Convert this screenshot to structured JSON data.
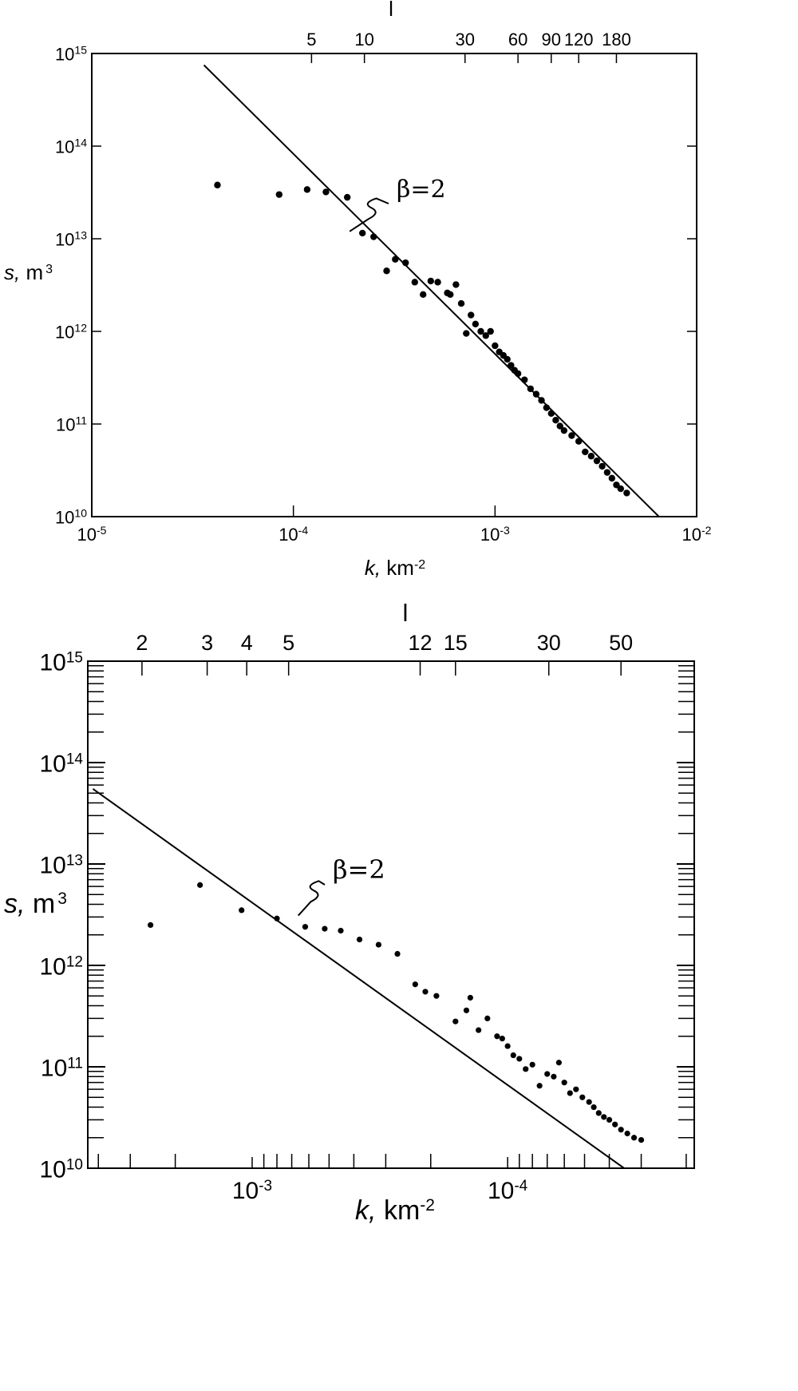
{
  "chart_data": [
    {
      "type": "scatter",
      "title": "",
      "x_scale": "log",
      "y_scale": "log",
      "xlabel": {
        "var": "k,",
        "unit": "km",
        "exp": "-2"
      },
      "ylabel": {
        "var": "s,",
        "unit": "m",
        "exp": "3"
      },
      "top_axis_label": "l",
      "xlim": [
        1e-05,
        0.01
      ],
      "ylim": [
        10000000000,
        1000000000000000
      ],
      "x_tick_labels": [
        {
          "x": 1e-05,
          "exp": "-5"
        },
        {
          "x": 0.0001,
          "exp": "-4"
        },
        {
          "x": 0.001,
          "exp": "-3"
        },
        {
          "x": 0.01,
          "exp": "-2"
        }
      ],
      "y_tick_labels": [
        {
          "y": 10000000000.0,
          "exp": "10"
        },
        {
          "y": 100000000000.0,
          "exp": "11"
        },
        {
          "y": 1000000000000.0,
          "exp": "12"
        },
        {
          "y": 10000000000000.0,
          "exp": "13"
        },
        {
          "y": 100000000000000.0,
          "exp": "14"
        },
        {
          "y": 1000000000000000.0,
          "exp": "15"
        }
      ],
      "top_ticks": [
        {
          "label": "5",
          "k": 0.000123
        },
        {
          "label": "10",
          "k": 0.000225
        },
        {
          "label": "30",
          "k": 0.00071
        },
        {
          "label": "60",
          "k": 0.0013
        },
        {
          "label": "90",
          "k": 0.0019
        },
        {
          "label": "120",
          "k": 0.0026
        },
        {
          "label": "180",
          "k": 0.004
        }
      ],
      "fit_line": {
        "label": "β=2",
        "points": [
          [
            3.6e-05,
            750000000000000.0
          ],
          [
            0.0065,
            10000000000.0
          ]
        ]
      },
      "annotation_at": [
        0.00019,
        12000000000000.0
      ],
      "points": [
        [
          4.2e-05,
          38000000000000.0
        ],
        [
          8.5e-05,
          30000000000000.0
        ],
        [
          0.000117,
          34000000000000.0
        ],
        [
          0.000145,
          32000000000000.0
        ],
        [
          0.000185,
          28000000000000.0
        ],
        [
          0.00022,
          11500000000000.0
        ],
        [
          0.00025,
          10500000000000.0
        ],
        [
          0.00029,
          4500000000000.0
        ],
        [
          0.00032,
          6000000000000.0
        ],
        [
          0.00036,
          5500000000000.0
        ],
        [
          0.0004,
          3400000000000.0
        ],
        [
          0.00044,
          2500000000000.0
        ],
        [
          0.00048,
          3500000000000.0
        ],
        [
          0.00052,
          3400000000000.0
        ],
        [
          0.00058,
          2600000000000.0
        ],
        [
          0.0006,
          2500000000000.0
        ],
        [
          0.00064,
          3200000000000.0
        ],
        [
          0.00068,
          2000000000000.0
        ],
        [
          0.00072,
          950000000000.0
        ],
        [
          0.00076,
          1500000000000.0
        ],
        [
          0.0008,
          1200000000000.0
        ],
        [
          0.00085,
          1000000000000.0
        ],
        [
          0.0009,
          900000000000.0
        ],
        [
          0.00095,
          1000000000000.0
        ],
        [
          0.001,
          700000000000.0
        ],
        [
          0.00105,
          600000000000.0
        ],
        [
          0.0011,
          550000000000.0
        ],
        [
          0.00115,
          500000000000.0
        ],
        [
          0.0012,
          430000000000.0
        ],
        [
          0.00125,
          380000000000.0
        ],
        [
          0.0013,
          350000000000.0
        ],
        [
          0.0014,
          300000000000.0
        ],
        [
          0.0015,
          240000000000.0
        ],
        [
          0.0016,
          210000000000.0
        ],
        [
          0.0017,
          180000000000.0
        ],
        [
          0.0018,
          150000000000.0
        ],
        [
          0.0019,
          130000000000.0
        ],
        [
          0.002,
          110000000000.0
        ],
        [
          0.0021,
          95000000000.0
        ],
        [
          0.0022,
          85000000000.0
        ],
        [
          0.0024,
          75000000000.0
        ],
        [
          0.0026,
          65000000000.0
        ],
        [
          0.0028,
          50000000000.0
        ],
        [
          0.003,
          45000000000.0
        ],
        [
          0.0032,
          40000000000.0
        ],
        [
          0.0034,
          35000000000.0
        ],
        [
          0.0036,
          30000000000.0
        ],
        [
          0.0038,
          26000000000.0
        ],
        [
          0.004,
          22000000000.0
        ],
        [
          0.0042,
          20000000000.0
        ],
        [
          0.0045,
          18000000000.0
        ]
      ]
    },
    {
      "type": "scatter",
      "title": "",
      "x_scale": "log",
      "y_scale": "log",
      "x_inverted": true,
      "xlabel": {
        "var": "k,",
        "unit": "km",
        "exp": "-2"
      },
      "ylabel": {
        "var": "s,",
        "unit": "m",
        "exp": "3"
      },
      "top_axis_label": "l",
      "xlim": [
        0.0044,
        1.86e-05
      ],
      "ylim": [
        10000000000,
        1000000000000000
      ],
      "x_tick_labels": [
        {
          "x": 0.001,
          "exp": "-3"
        },
        {
          "x": 0.0001,
          "exp": "-4"
        }
      ],
      "y_tick_labels": [
        {
          "y": 10000000000.0,
          "exp": "10"
        },
        {
          "y": 100000000000.0,
          "exp": "11"
        },
        {
          "y": 1000000000000.0,
          "exp": "12"
        },
        {
          "y": 10000000000000.0,
          "exp": "13"
        },
        {
          "y": 100000000000000.0,
          "exp": "14"
        },
        {
          "y": 1000000000000000.0,
          "exp": "15"
        }
      ],
      "top_ticks": [
        {
          "label": "2",
          "k": 0.0027
        },
        {
          "label": "3",
          "k": 0.0015
        },
        {
          "label": "4",
          "k": 0.00105
        },
        {
          "label": "5",
          "k": 0.00072
        },
        {
          "label": "12",
          "k": 0.00022
        },
        {
          "label": "15",
          "k": 0.00016
        },
        {
          "label": "30",
          "k": 6.9e-05
        },
        {
          "label": "50",
          "k": 3.6e-05
        }
      ],
      "fit_line": {
        "label": "β=2",
        "points": [
          [
            0.0042,
            55000000000000.0
          ],
          [
            3.5e-05,
            10000000000.0
          ]
        ]
      },
      "annotation_at": [
        0.00066,
        3100000000000.0
      ],
      "points": [
        [
          0.0025,
          2500000000000.0
        ],
        [
          0.0016,
          6200000000000.0
        ],
        [
          0.0011,
          3500000000000.0
        ],
        [
          0.0008,
          2900000000000.0
        ],
        [
          0.00062,
          2400000000000.0
        ],
        [
          0.00052,
          2300000000000.0
        ],
        [
          0.00045,
          2200000000000.0
        ],
        [
          0.00038,
          1800000000000.0
        ],
        [
          0.00032,
          1600000000000.0
        ],
        [
          0.00027,
          1300000000000.0
        ],
        [
          0.00023,
          650000000000.0
        ],
        [
          0.00021,
          550000000000.0
        ],
        [
          0.00019,
          500000000000.0
        ],
        [
          0.00016,
          280000000000.0
        ],
        [
          0.000145,
          360000000000.0
        ],
        [
          0.00014,
          480000000000.0
        ],
        [
          0.00013,
          230000000000.0
        ],
        [
          0.00012,
          300000000000.0
        ],
        [
          0.00011,
          200000000000.0
        ],
        [
          0.000105,
          190000000000.0
        ],
        [
          0.0001,
          160000000000.0
        ],
        [
          9.5e-05,
          130000000000.0
        ],
        [
          9e-05,
          120000000000.0
        ],
        [
          8.5e-05,
          95000000000.0
        ],
        [
          8e-05,
          105000000000.0
        ],
        [
          7.5e-05,
          65000000000.0
        ],
        [
          7e-05,
          85000000000.0
        ],
        [
          6.6e-05,
          80000000000.0
        ],
        [
          6.3e-05,
          110000000000.0
        ],
        [
          6e-05,
          70000000000.0
        ],
        [
          5.7e-05,
          55000000000.0
        ],
        [
          5.4e-05,
          60000000000.0
        ],
        [
          5.1e-05,
          50000000000.0
        ],
        [
          4.8e-05,
          45000000000.0
        ],
        [
          4.6e-05,
          40000000000.0
        ],
        [
          4.4e-05,
          35000000000.0
        ],
        [
          4.2e-05,
          32000000000.0
        ],
        [
          4e-05,
          30000000000.0
        ],
        [
          3.8e-05,
          27000000000.0
        ],
        [
          3.6e-05,
          24000000000.0
        ],
        [
          3.4e-05,
          22000000000.0
        ],
        [
          3.2e-05,
          20000000000.0
        ],
        [
          3e-05,
          19000000000.0
        ]
      ]
    }
  ]
}
